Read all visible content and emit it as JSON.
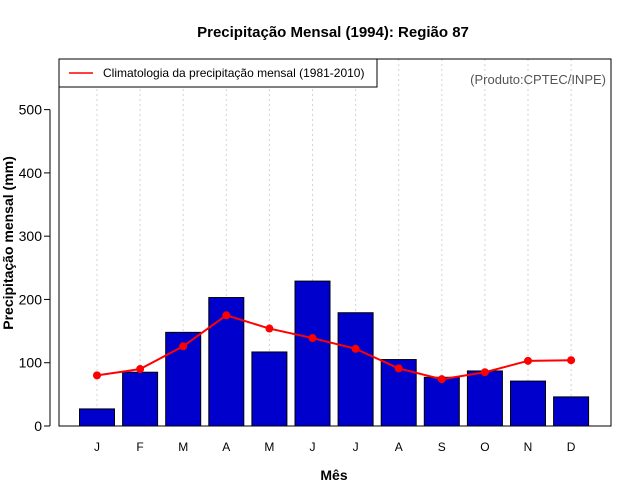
{
  "chart_data": {
    "type": "bar",
    "title": "Precipitação Mensal (1994): Região 87",
    "xlabel": "Mês",
    "ylabel": "Precipitação mensal (mm)",
    "ylim": [
      0,
      580
    ],
    "yticks": [
      0,
      100,
      200,
      300,
      400,
      500
    ],
    "categories": [
      "J",
      "F",
      "M",
      "A",
      "M",
      "J",
      "J",
      "A",
      "S",
      "O",
      "N",
      "D"
    ],
    "series": [
      {
        "name": "Precipitação mensal 1994",
        "type": "bar",
        "color": "#0000cd",
        "values": [
          27,
          85,
          148,
          203,
          117,
          229,
          179,
          105,
          77,
          87,
          71,
          46
        ]
      },
      {
        "name": "Climatologia da precipitação mensal (1981-2010)",
        "type": "line",
        "color": "#ff0000",
        "values": [
          80,
          90,
          126,
          175,
          154,
          139,
          122,
          91,
          74,
          85,
          103,
          104
        ]
      }
    ],
    "grid": "vertical dotted",
    "legend": {
      "position": "top-left",
      "entries": [
        "Climatologia da precipitação mensal (1981-2010)"
      ]
    },
    "annotation": "(Produto:CPTEC/INPE)"
  }
}
